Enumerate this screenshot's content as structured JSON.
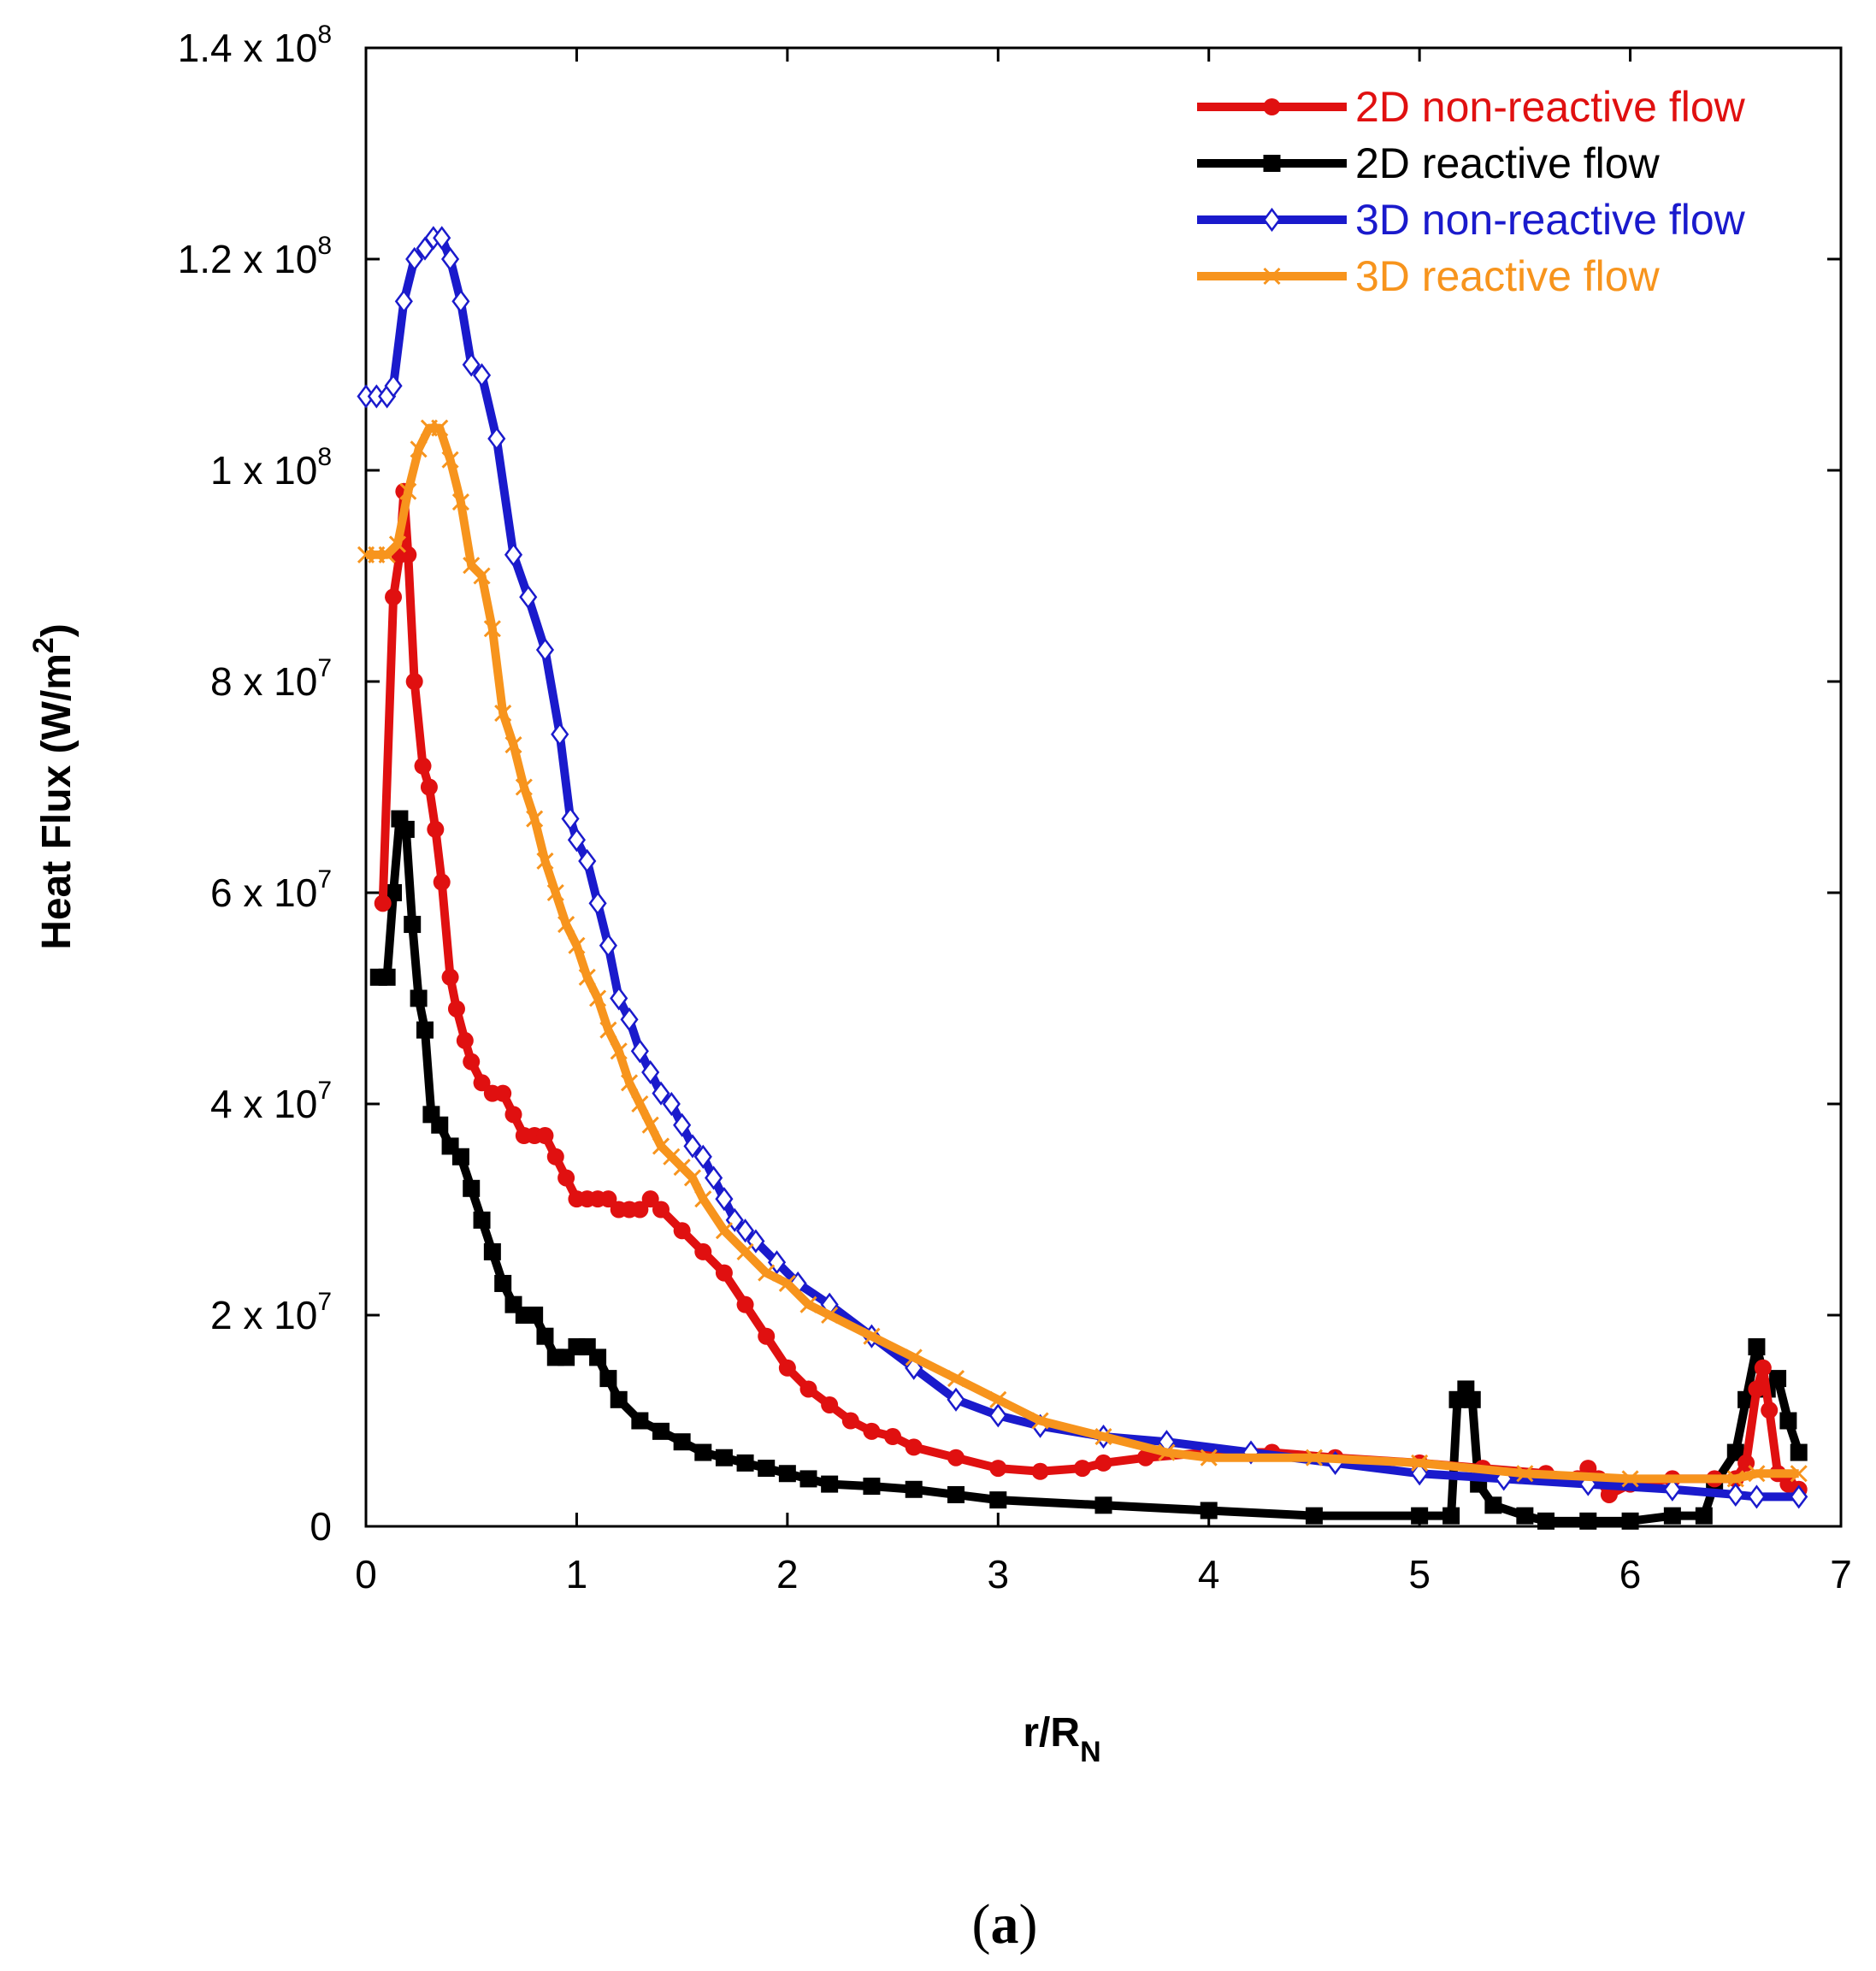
{
  "chart_data": {
    "type": "line",
    "xlabel_main": "r/R",
    "xlabel_sub": "N",
    "ylabel_main": "Heat Flux (W/m",
    "ylabel_sup": "2",
    "ylabel_close": ")",
    "xlim": [
      0,
      7
    ],
    "ylim": [
      0,
      140000000
    ],
    "x_ticks": [
      {
        "value": 0,
        "label": "0"
      },
      {
        "value": 1,
        "label": "1"
      },
      {
        "value": 2,
        "label": "2"
      },
      {
        "value": 3,
        "label": "3"
      },
      {
        "value": 4,
        "label": "4"
      },
      {
        "value": 5,
        "label": "5"
      },
      {
        "value": 6,
        "label": "6"
      },
      {
        "value": 7,
        "label": "7"
      }
    ],
    "y_ticks": [
      {
        "value": 0,
        "mantissa": "0",
        "exp": ""
      },
      {
        "value": 20000000,
        "mantissa": "2 x 10",
        "exp": "7"
      },
      {
        "value": 40000000,
        "mantissa": "4 x 10",
        "exp": "7"
      },
      {
        "value": 60000000,
        "mantissa": "6 x 10",
        "exp": "7"
      },
      {
        "value": 80000000,
        "mantissa": "8 x 10",
        "exp": "7"
      },
      {
        "value": 100000000,
        "mantissa": "1 x 10",
        "exp": "8"
      },
      {
        "value": 120000000,
        "mantissa": "1.2 x 10",
        "exp": "8"
      },
      {
        "value": 140000000,
        "mantissa": "1.4 x 10",
        "exp": "8"
      }
    ],
    "legend_position": "top-right",
    "series": [
      {
        "name": "2D non-reactive flow",
        "color": "#e01010",
        "marker": "circle",
        "x": [
          0.08,
          0.13,
          0.16,
          0.18,
          0.2,
          0.23,
          0.27,
          0.3,
          0.33,
          0.36,
          0.4,
          0.43,
          0.47,
          0.5,
          0.55,
          0.6,
          0.65,
          0.7,
          0.75,
          0.8,
          0.85,
          0.9,
          0.95,
          1.0,
          1.05,
          1.1,
          1.15,
          1.2,
          1.25,
          1.3,
          1.35,
          1.4,
          1.5,
          1.6,
          1.7,
          1.8,
          1.9,
          2.0,
          2.1,
          2.2,
          2.3,
          2.4,
          2.5,
          2.6,
          2.8,
          3.0,
          3.2,
          3.4,
          3.5,
          3.7,
          4.0,
          4.3,
          4.6,
          5.0,
          5.3,
          5.6,
          5.75,
          5.8,
          5.85,
          5.9,
          6.0,
          6.2,
          6.4,
          6.5,
          6.55,
          6.6,
          6.63,
          6.66,
          6.7,
          6.75,
          6.8
        ],
        "y": [
          59000000,
          88000000,
          92000000,
          98000000,
          92000000,
          80000000,
          72000000,
          70000000,
          66000000,
          61000000,
          52000000,
          49000000,
          46000000,
          44000000,
          42000000,
          41000000,
          41000000,
          39000000,
          37000000,
          37000000,
          37000000,
          35000000,
          33000000,
          31000000,
          31000000,
          31000000,
          31000000,
          30000000,
          30000000,
          30000000,
          31000000,
          30000000,
          28000000,
          26000000,
          24000000,
          21000000,
          18000000,
          15000000,
          13000000,
          11500000,
          10000000,
          9000000,
          8500000,
          7500000,
          6500000,
          5500000,
          5200000,
          5500000,
          6000000,
          6500000,
          7000000,
          7000000,
          6500000,
          6000000,
          5500000,
          5000000,
          4500000,
          5500000,
          4500000,
          3000000,
          4000000,
          4500000,
          4500000,
          4500000,
          6000000,
          13000000,
          15000000,
          11000000,
          5000000,
          4000000,
          3500000
        ]
      },
      {
        "name": "2D reactive flow",
        "color": "#000000",
        "marker": "square",
        "x": [
          0.06,
          0.1,
          0.13,
          0.16,
          0.19,
          0.22,
          0.25,
          0.28,
          0.31,
          0.35,
          0.4,
          0.45,
          0.5,
          0.55,
          0.6,
          0.65,
          0.7,
          0.75,
          0.8,
          0.85,
          0.9,
          0.95,
          1.0,
          1.05,
          1.1,
          1.15,
          1.2,
          1.3,
          1.4,
          1.5,
          1.6,
          1.7,
          1.8,
          1.9,
          2.0,
          2.1,
          2.2,
          2.4,
          2.6,
          2.8,
          3.0,
          3.5,
          4.0,
          4.5,
          5.0,
          5.15,
          5.18,
          5.22,
          5.25,
          5.28,
          5.35,
          5.5,
          5.6,
          5.8,
          6.0,
          6.2,
          6.35,
          6.4,
          6.5,
          6.55,
          6.6,
          6.65,
          6.7,
          6.75,
          6.8
        ],
        "y": [
          52000000,
          52000000,
          60000000,
          67000000,
          66000000,
          57000000,
          50000000,
          47000000,
          39000000,
          38000000,
          36000000,
          35000000,
          32000000,
          29000000,
          26000000,
          23000000,
          21000000,
          20000000,
          20000000,
          18000000,
          16000000,
          16000000,
          17000000,
          17000000,
          16000000,
          14000000,
          12000000,
          10000000,
          9000000,
          8000000,
          7000000,
          6500000,
          6000000,
          5500000,
          5000000,
          4500000,
          4000000,
          3800000,
          3500000,
          3000000,
          2500000,
          2000000,
          1500000,
          1000000,
          1000000,
          1000000,
          12000000,
          13000000,
          12000000,
          4000000,
          2000000,
          1000000,
          500000,
          500000,
          500000,
          1000000,
          1000000,
          4000000,
          7000000,
          12000000,
          17000000,
          13000000,
          14000000,
          10000000,
          7000000
        ]
      },
      {
        "name": "3D non-reactive flow",
        "color": "#1a1acc",
        "marker": "diamond-open",
        "x": [
          0.0,
          0.05,
          0.1,
          0.13,
          0.18,
          0.23,
          0.28,
          0.32,
          0.36,
          0.4,
          0.45,
          0.5,
          0.55,
          0.62,
          0.7,
          0.77,
          0.85,
          0.92,
          0.97,
          1.0,
          1.05,
          1.1,
          1.15,
          1.2,
          1.25,
          1.3,
          1.35,
          1.4,
          1.45,
          1.5,
          1.55,
          1.6,
          1.65,
          1.7,
          1.75,
          1.8,
          1.85,
          1.95,
          2.05,
          2.2,
          2.4,
          2.6,
          2.8,
          3.0,
          3.2,
          3.5,
          3.8,
          4.2,
          4.6,
          5.0,
          5.4,
          5.8,
          6.2,
          6.5,
          6.6,
          6.8
        ],
        "y": [
          107000000,
          107000000,
          107000000,
          108000000,
          116000000,
          120000000,
          121000000,
          122000000,
          122000000,
          120000000,
          116000000,
          110000000,
          109000000,
          103000000,
          92000000,
          88000000,
          83000000,
          75000000,
          67000000,
          65000000,
          63000000,
          59000000,
          55000000,
          50000000,
          48000000,
          45000000,
          43000000,
          41000000,
          40000000,
          38000000,
          36000000,
          35000000,
          33000000,
          31000000,
          29000000,
          28000000,
          27000000,
          25000000,
          23000000,
          21000000,
          18000000,
          15000000,
          12000000,
          10500000,
          9500000,
          8500000,
          8000000,
          7000000,
          6000000,
          5000000,
          4500000,
          4000000,
          3500000,
          3000000,
          2800000,
          2800000
        ]
      },
      {
        "name": "3D reactive flow",
        "color": "#f7941d",
        "marker": "cross",
        "x": [
          0.0,
          0.05,
          0.1,
          0.15,
          0.2,
          0.25,
          0.3,
          0.35,
          0.4,
          0.45,
          0.5,
          0.55,
          0.6,
          0.65,
          0.7,
          0.75,
          0.8,
          0.85,
          0.9,
          0.95,
          1.0,
          1.05,
          1.1,
          1.15,
          1.2,
          1.25,
          1.3,
          1.35,
          1.4,
          1.45,
          1.5,
          1.55,
          1.6,
          1.7,
          1.8,
          1.9,
          2.0,
          2.1,
          2.2,
          2.4,
          2.6,
          2.8,
          3.0,
          3.2,
          3.5,
          3.8,
          4.0,
          4.5,
          5.0,
          5.5,
          6.0,
          6.5,
          6.6,
          6.8
        ],
        "y": [
          92000000,
          92000000,
          92000000,
          93000000,
          98000000,
          102000000,
          104000000,
          104000000,
          101000000,
          97000000,
          91000000,
          90000000,
          85000000,
          77000000,
          74000000,
          70000000,
          67000000,
          63000000,
          60000000,
          57000000,
          55000000,
          52000000,
          50000000,
          47000000,
          45000000,
          42000000,
          40000000,
          38000000,
          36000000,
          35000000,
          34000000,
          33000000,
          31000000,
          28000000,
          26000000,
          24000000,
          23000000,
          21000000,
          20000000,
          18000000,
          16000000,
          14000000,
          12000000,
          10000000,
          8500000,
          7000000,
          6500000,
          6500000,
          6000000,
          5000000,
          4500000,
          4500000,
          5000000,
          5000000
        ]
      }
    ]
  },
  "caption": {
    "open": "(",
    "letter": "a",
    "close": ")"
  }
}
